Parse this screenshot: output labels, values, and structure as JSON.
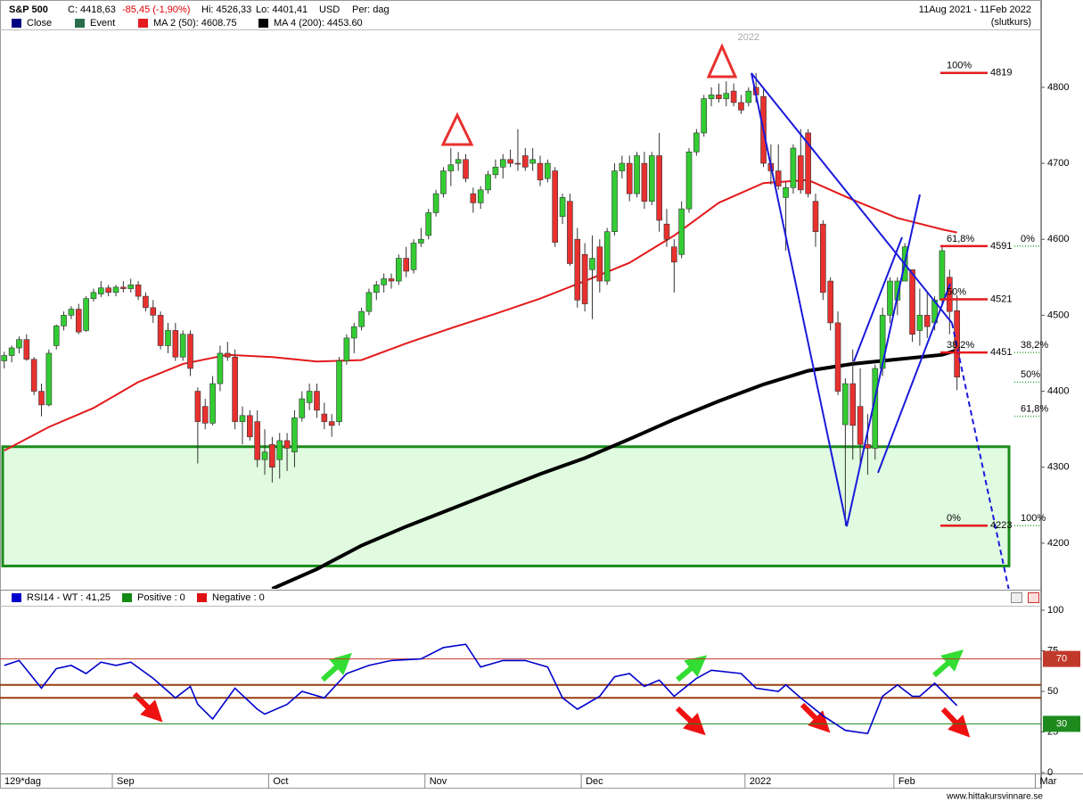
{
  "header": {
    "symbol": "S&P 500",
    "close": "C: 4418,63",
    "change": "-85,45 (-1,90%)",
    "high": "Hi: 4526,33",
    "low": "Lo: 4401,41",
    "currency": "USD",
    "period": "Per: dag",
    "range": "11Aug 2021 - 11Feb 2022",
    "price_type": "(slutkurs)"
  },
  "chart_data": [
    {
      "type": "candlestick",
      "year_label": "2022",
      "candles": {
        "name": "Close",
        "color": "#000080",
        "open": [
          4440,
          4447,
          4457,
          4468,
          4442,
          4400,
          4382,
          4460,
          4486,
          4500,
          4508,
          4480,
          4522,
          4528,
          4536,
          4530,
          4537,
          4535,
          4540,
          4525,
          4510,
          4500,
          4460,
          4480,
          4445,
          4475,
          4400,
          4380,
          4358,
          4410,
          4450,
          4445,
          4360,
          4368,
          4360,
          4310,
          4330,
          4310,
          4335,
          4320,
          4365,
          4385,
          4400,
          4370,
          4360,
          4360,
          4440,
          4470,
          4485,
          4505,
          4530,
          4540,
          4548,
          4545,
          4575,
          4560,
          4595,
          4605,
          4635,
          4660,
          4690,
          4700,
          4705,
          4660,
          4648,
          4665,
          4685,
          4695,
          4705,
          4700,
          4710,
          4700,
          4700,
          4680,
          4690,
          4630,
          4650,
          4600,
          4580,
          4560,
          4590,
          4545,
          4610,
          4690,
          4700,
          4660,
          4700,
          4650,
          4710,
          4620,
          4590,
          4580,
          4640,
          4715,
          4740,
          4785,
          4790,
          4785,
          4795,
          4780,
          4780,
          4800,
          4788,
          4700,
          4690,
          4655,
          4668,
          4710,
          4740,
          4650,
          4620,
          4545,
          4490,
          4356,
          4410,
          4380,
          4330,
          4325,
          4430,
          4500,
          4520,
          4545,
          4560,
          4480,
          4500,
          4490,
          4520,
          4550,
          4506
        ],
        "high": [
          4452,
          4460,
          4472,
          4475,
          4445,
          4410,
          4455,
          4488,
          4505,
          4512,
          4515,
          4525,
          4535,
          4545,
          4540,
          4540,
          4545,
          4548,
          4545,
          4530,
          4520,
          4505,
          4490,
          4490,
          4480,
          4480,
          4405,
          4390,
          4420,
          4460,
          4465,
          4455,
          4380,
          4375,
          4375,
          4350,
          4340,
          4345,
          4345,
          4375,
          4400,
          4410,
          4410,
          4385,
          4370,
          4445,
          4475,
          4490,
          4510,
          4535,
          4545,
          4555,
          4555,
          4580,
          4590,
          4600,
          4615,
          4640,
          4665,
          4695,
          4720,
          4715,
          4712,
          4668,
          4670,
          4690,
          4705,
          4712,
          4718,
          4745,
          4720,
          4720,
          4710,
          4705,
          4695,
          4660,
          4660,
          4615,
          4595,
          4605,
          4600,
          4615,
          4700,
          4710,
          4710,
          4715,
          4715,
          4715,
          4740,
          4640,
          4600,
          4650,
          4720,
          4745,
          4790,
          4800,
          4805,
          4808,
          4805,
          4790,
          4800,
          4819,
          4797,
          4725,
          4725,
          4675,
          4725,
          4745,
          4745,
          4660,
          4625,
          4550,
          4505,
          4417,
          4455,
          4430,
          4370,
          4435,
          4510,
          4550,
          4550,
          4595,
          4560,
          4535,
          4530,
          4525,
          4590,
          4560,
          4526.33
        ],
        "low": [
          4430,
          4438,
          4450,
          4440,
          4395,
          4367,
          4380,
          4455,
          4480,
          4495,
          4475,
          4478,
          4518,
          4524,
          4525,
          4525,
          4530,
          4530,
          4520,
          4505,
          4490,
          4455,
          4450,
          4440,
          4440,
          4420,
          4305,
          4350,
          4355,
          4400,
          4440,
          4350,
          4330,
          4335,
          4300,
          4290,
          4280,
          4285,
          4295,
          4300,
          4360,
          4375,
          4365,
          4350,
          4340,
          4355,
          4435,
          4450,
          4480,
          4500,
          4520,
          4530,
          4535,
          4540,
          4550,
          4555,
          4590,
          4600,
          4630,
          4655,
          4670,
          4690,
          4675,
          4635,
          4640,
          4660,
          4680,
          4680,
          4695,
          4690,
          4690,
          4690,
          4670,
          4675,
          4590,
          4620,
          4565,
          4510,
          4505,
          4495,
          4530,
          4540,
          4605,
          4680,
          4650,
          4655,
          4640,
          4645,
          4610,
          4590,
          4530,
          4575,
          4635,
          4710,
          4735,
          4775,
          4780,
          4775,
          4775,
          4765,
          4775,
          4780,
          4695,
          4672,
          4665,
          4585,
          4660,
          4660,
          4655,
          4590,
          4520,
          4480,
          4395,
          4223,
          4310,
          4300,
          4290,
          4310,
          4420,
          4490,
          4500,
          4545,
          4465,
          4460,
          4470,
          4480,
          4515,
          4475,
          4401.41
        ],
        "close": [
          4447,
          4457,
          4468,
          4442,
          4400,
          4382,
          4450,
          4486,
          4500,
          4508,
          4478,
          4522,
          4530,
          4536,
          4530,
          4537,
          4535,
          4540,
          4525,
          4510,
          4500,
          4460,
          4480,
          4445,
          4475,
          4430,
          4360,
          4358,
          4410,
          4450,
          4445,
          4360,
          4368,
          4340,
          4310,
          4320,
          4300,
          4335,
          4325,
          4365,
          4390,
          4400,
          4375,
          4360,
          4355,
          4440,
          4470,
          4485,
          4505,
          4530,
          4540,
          4548,
          4545,
          4575,
          4558,
          4595,
          4600,
          4635,
          4660,
          4690,
          4698,
          4705,
          4680,
          4648,
          4665,
          4685,
          4695,
          4705,
          4700,
          4700,
          4695,
          4705,
          4678,
          4700,
          4596,
          4655,
          4568,
          4520,
          4515,
          4575,
          4545,
          4610,
          4690,
          4700,
          4660,
          4710,
          4650,
          4710,
          4625,
          4600,
          4570,
          4640,
          4715,
          4740,
          4785,
          4790,
          4785,
          4792,
          4780,
          4770,
          4795,
          4790,
          4700,
          4690,
          4670,
          4668,
          4720,
          4665,
          4660,
          4610,
          4530,
          4490,
          4400,
          4410,
          4355,
          4330,
          4325,
          4430,
          4500,
          4545,
          4545,
          4590,
          4475,
          4500,
          4485,
          4520,
          4585,
          4505,
          4418.63
        ]
      },
      "up_color": "#33cc33",
      "down_color": "#e8312f",
      "event": {
        "name": "Event",
        "color": "#2a6e4e"
      },
      "lines": [
        {
          "name": "MA 2 (50): 4608.75",
          "color": "#e41a1c",
          "x": [
            0,
            6,
            12,
            18,
            24,
            30,
            36,
            42,
            48,
            54,
            60,
            66,
            72,
            78,
            84,
            90,
            96,
            102,
            108,
            114,
            120,
            126,
            128
          ],
          "values": [
            4322,
            4353,
            4378,
            4412,
            4436,
            4448,
            4445,
            4439,
            4441,
            4463,
            4483,
            4502,
            4522,
            4545,
            4569,
            4605,
            4648,
            4674,
            4678,
            4652,
            4628,
            4613,
            4609
          ]
        },
        {
          "name": "MA 4 (200): 4453.60",
          "color": "#000000",
          "x": [
            36,
            42,
            48,
            54,
            60,
            66,
            72,
            78,
            84,
            90,
            96,
            102,
            108,
            114,
            120,
            126,
            128
          ],
          "values": [
            4140,
            4166,
            4197,
            4222,
            4245,
            4268,
            4291,
            4312,
            4337,
            4363,
            4387,
            4409,
            4427,
            4436,
            4442,
            4448,
            4454
          ]
        }
      ],
      "fib_left": {
        "color": "#e41a1c",
        "levels": [
          {
            "value": 4819,
            "label": "100%"
          },
          {
            "value": 4591,
            "label": "61,8%"
          },
          {
            "value": 4521,
            "label": "50%"
          },
          {
            "value": 4451,
            "label": "38,2%"
          },
          {
            "value": 4223,
            "label": "0%"
          }
        ]
      },
      "fib_right": {
        "color": "#33aa33",
        "levels": [
          {
            "value": 4591,
            "label": "0%"
          },
          {
            "value": 4451,
            "label": "38,2%"
          },
          {
            "value": 4412,
            "label": "50%"
          },
          {
            "value": 4367,
            "label": "61,8%"
          },
          {
            "value": 4223,
            "label": "100%"
          }
        ]
      },
      "zone": {
        "color": "#1a8c1a",
        "range": [
          4170,
          4327
        ]
      },
      "xlim": [
        -0.57,
        139.3
      ],
      "ylim": [
        4140,
        4875
      ],
      "yticks": [
        4200,
        4300,
        4400,
        4500,
        4600,
        4700,
        4800
      ],
      "xticks": [
        {
          "value": 15,
          "label": "Sep"
        },
        {
          "value": 36,
          "label": "Oct"
        },
        {
          "value": 57,
          "label": "Nov"
        },
        {
          "value": 78,
          "label": "Dec"
        },
        {
          "value": 100,
          "label": "2022"
        },
        {
          "value": 120,
          "label": "Feb"
        },
        {
          "value": 139,
          "label": "Mar"
        }
      ]
    },
    {
      "type": "line",
      "series": [
        {
          "name": "RSI14 - WT : 41,25",
          "color": "#0000cc",
          "x": [
            0,
            2,
            5,
            7,
            9,
            11,
            13,
            15,
            17,
            20,
            22,
            23,
            25,
            26,
            28,
            31,
            34,
            35,
            38,
            40,
            43,
            46,
            49,
            52,
            56,
            59,
            62,
            64,
            67,
            70,
            73,
            75,
            77,
            80,
            82,
            84,
            86,
            88,
            90,
            93,
            95,
            99,
            101,
            104,
            105,
            107,
            110,
            113,
            116,
            118,
            120,
            122,
            123,
            125,
            128
          ],
          "values": [
            66,
            69,
            52,
            64,
            66,
            61,
            68,
            66,
            68,
            58,
            50,
            46,
            53,
            42,
            33,
            52,
            39,
            36,
            42,
            50,
            46,
            61,
            66,
            69,
            70,
            77,
            79,
            65,
            69,
            69,
            65,
            46,
            39,
            47,
            59,
            61,
            53,
            57,
            47,
            58,
            63,
            61,
            52,
            50,
            54,
            46,
            35,
            26,
            24,
            47,
            54,
            47,
            47,
            55,
            41.25
          ]
        }
      ],
      "legend_extra": [
        {
          "name": "Positive : 0",
          "color": "#138a13"
        },
        {
          "name": "Negative : 0",
          "color": "#dd1111"
        }
      ],
      "levels": [
        {
          "value": 70,
          "color": "#c0392b"
        },
        {
          "value": 30,
          "color": "#1e8a1e"
        }
      ],
      "guides": [
        {
          "value": 54,
          "color": "#9a3d12"
        },
        {
          "value": 46,
          "color": "#9a3d12"
        }
      ],
      "xlim": [
        -0.57,
        139.3
      ],
      "ylim": [
        0,
        100
      ],
      "yticks": [
        0,
        25,
        50,
        75,
        100
      ]
    }
  ],
  "footer": {
    "days": "129*dag",
    "watermark": "www.hittakursvinnare.se"
  }
}
